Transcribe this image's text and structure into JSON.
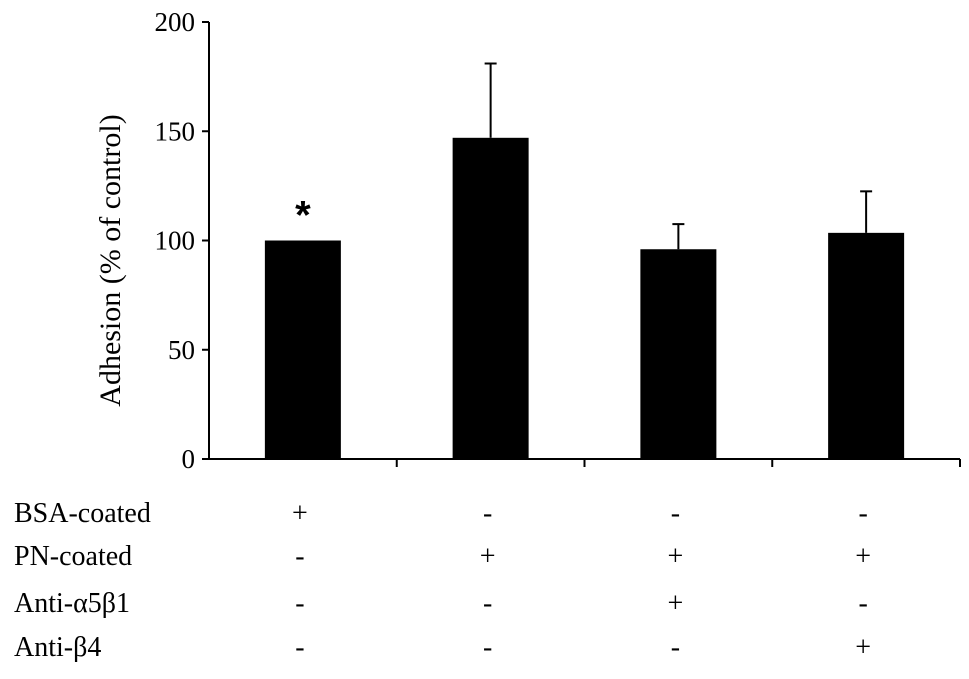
{
  "chart_data": {
    "type": "bar",
    "title": "",
    "xlabel": "",
    "ylabel": "Adhesion (% of control)",
    "ylim": [
      0,
      200
    ],
    "yticks": [
      0,
      50,
      100,
      150,
      200
    ],
    "ytick_labels": [
      "0",
      "50",
      "100",
      "150",
      "200"
    ],
    "grid": false,
    "categories": [
      "BSA",
      "PN",
      "PN + Anti-α5β1",
      "PN + Anti-β4"
    ],
    "values": [
      100,
      147,
      96,
      103.5
    ],
    "error_upper": [
      0,
      34,
      11.5,
      19
    ],
    "annotations": [
      "*",
      "",
      "",
      ""
    ],
    "bar_color": "#000000",
    "condition_table": {
      "rows": [
        {
          "label": "BSA-coated",
          "signs": [
            "+",
            "-",
            "-",
            "-"
          ]
        },
        {
          "label": "PN-coated",
          "signs": [
            "-",
            "+",
            "+",
            "+"
          ]
        },
        {
          "label": "Anti-α5β1",
          "signs": [
            "-",
            "-",
            "+",
            "-"
          ]
        },
        {
          "label": "Anti-β4",
          "signs": [
            "-",
            "-",
            "-",
            "+"
          ]
        }
      ]
    }
  }
}
